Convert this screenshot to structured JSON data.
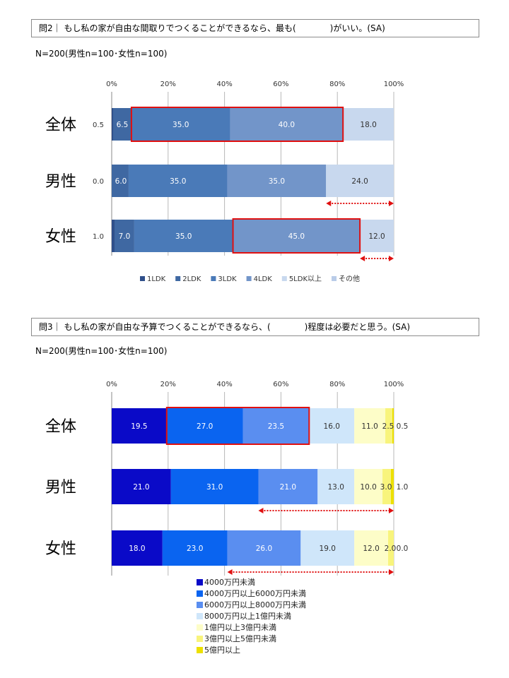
{
  "q2": {
    "question": "問2｜ もし私の家が自由な間取りでつくることができるなら、最も(　　　　)がいい。(SA)",
    "n_label": "N=200(男性n=100･女性n=100)"
  },
  "q3": {
    "question": "問3｜ もし私の家が自由な予算でつくることができるなら、(　　　　)程度は必要だと思う。(SA)",
    "n_label": "N=200(男性n=100･女性n=100)"
  },
  "chart_data": [
    {
      "type": "bar",
      "orientation": "horizontal-stacked-100",
      "categories": [
        "全体",
        "男性",
        "女性"
      ],
      "x_ticks": [
        "0%",
        "20%",
        "40%",
        "60%",
        "80%",
        "100%"
      ],
      "xlim": [
        0,
        100
      ],
      "grid": true,
      "legend_position": "bottom",
      "series": [
        {
          "name": "1LDK",
          "values": [
            0.5,
            0.0,
            1.0
          ],
          "color": "#2f4f8a"
        },
        {
          "name": "2LDK",
          "values": [
            6.5,
            6.0,
            7.0
          ],
          "color": "#3f68a2"
        },
        {
          "name": "3LDK",
          "values": [
            35.0,
            35.0,
            35.0
          ],
          "color": "#4a7ab8"
        },
        {
          "name": "4LDK",
          "values": [
            40.0,
            35.0,
            45.0
          ],
          "color": "#7295c9"
        },
        {
          "name": "5LDK以上",
          "values": [
            18.0,
            24.0,
            12.0
          ],
          "color": "#c8d8ee"
        },
        {
          "name": "その他",
          "values": [
            0,
            0,
            0
          ],
          "color": "#b9cce8"
        }
      ],
      "highlights": [
        {
          "row": 0,
          "from_series": 2,
          "to_series": 3
        },
        {
          "row": 2,
          "from_series": 3,
          "to_series": 3
        }
      ],
      "arrows": [
        {
          "row": 1,
          "from": 76,
          "to": 100
        },
        {
          "row": 2,
          "from": 88,
          "to": 100
        }
      ]
    },
    {
      "type": "bar",
      "orientation": "horizontal-stacked-100",
      "categories": [
        "全体",
        "男性",
        "女性"
      ],
      "x_ticks": [
        "0%",
        "20%",
        "40%",
        "60%",
        "80%",
        "100%"
      ],
      "xlim": [
        0,
        100
      ],
      "grid": true,
      "legend_position": "bottom",
      "series": [
        {
          "name": "4000万円未満",
          "values": [
            19.5,
            21.0,
            18.0
          ],
          "color": "#0a0ac8"
        },
        {
          "name": "4000万円以上6000万円未満",
          "values": [
            27.0,
            31.0,
            23.0
          ],
          "color": "#0a64f0"
        },
        {
          "name": "6000万円以上8000万円未満",
          "values": [
            23.5,
            21.0,
            26.0
          ],
          "color": "#5a8ef0"
        },
        {
          "name": "8000万円以上1億円未満",
          "values": [
            16.0,
            13.0,
            19.0
          ],
          "color": "#cfe6fa"
        },
        {
          "name": "1億円以上3億円未満",
          "values": [
            11.0,
            10.0,
            12.0
          ],
          "color": "#fdfdc8"
        },
        {
          "name": "3億円以上5億円未満",
          "values": [
            2.5,
            3.0,
            2.0
          ],
          "color": "#f8f47c"
        },
        {
          "name": "5億円以上",
          "values": [
            0.5,
            1.0,
            0.0
          ],
          "color": "#ede000"
        }
      ],
      "highlights": [
        {
          "row": 0,
          "from_series": 1,
          "to_series": 2
        }
      ],
      "arrows": [
        {
          "row": 1,
          "from": 52,
          "to": 100
        },
        {
          "row": 2,
          "from": 41,
          "to": 100
        }
      ]
    }
  ]
}
